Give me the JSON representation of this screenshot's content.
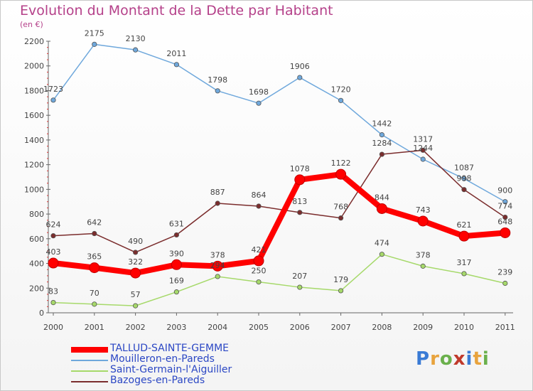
{
  "title": "Evolution du Montant de la Dette par Habitant",
  "subtitle": "(en €)",
  "logo": "Proxiti",
  "chart_data": {
    "type": "line",
    "title": "Evolution du Montant de la Dette par Habitant",
    "subtitle": "(en €)",
    "x": [
      "2000",
      "2001",
      "2002",
      "2003",
      "2004",
      "2005",
      "2006",
      "2007",
      "2008",
      "2009",
      "2010",
      "2011"
    ],
    "ylim": [
      0,
      2200
    ],
    "yticks": [
      0,
      200,
      400,
      600,
      800,
      1000,
      1200,
      1400,
      1600,
      1800,
      2000,
      2200
    ],
    "grid": false,
    "legend_position": "bottom-left",
    "series": [
      {
        "name": "TALLUD-SAINTE-GEMME",
        "color": "#ff0000",
        "values": [
          403,
          365,
          322,
          390,
          378,
          421,
          1078,
          1122,
          844,
          743,
          621,
          648
        ],
        "labels": [
          "403",
          "365",
          "322",
          "390",
          "378",
          "421",
          "1078",
          "1122",
          "844",
          "743",
          "621",
          "648"
        ]
      },
      {
        "name": "Mouilleron-en-Pareds",
        "color": "#6fa8dc",
        "values": [
          1723,
          2175,
          2130,
          2011,
          1798,
          1698,
          1906,
          1720,
          1442,
          1244,
          1087,
          900
        ],
        "labels": [
          "1723",
          "2175",
          "2130",
          "2011",
          "1798",
          "1698",
          "1906",
          "1720",
          "1442",
          "1244",
          "1087",
          "900"
        ]
      },
      {
        "name": "Saint-Germain-l'Aiguiller",
        "color": "#a6d96a",
        "values": [
          83,
          70,
          57,
          169,
          294,
          250,
          207,
          179,
          474,
          378,
          317,
          239
        ],
        "labels": [
          "83",
          "70",
          "57",
          "169",
          "294",
          "250",
          "207",
          "179",
          "474",
          "378",
          "317",
          "239"
        ]
      },
      {
        "name": "Bazoges-en-Pareds",
        "color": "#7b2d2d",
        "values": [
          624,
          642,
          490,
          631,
          887,
          864,
          813,
          768,
          1284,
          1317,
          998,
          774
        ],
        "labels": [
          "624",
          "642",
          "490",
          "631",
          "887",
          "864",
          "813",
          "768",
          "1284",
          "1317",
          "998",
          "774"
        ]
      }
    ]
  }
}
